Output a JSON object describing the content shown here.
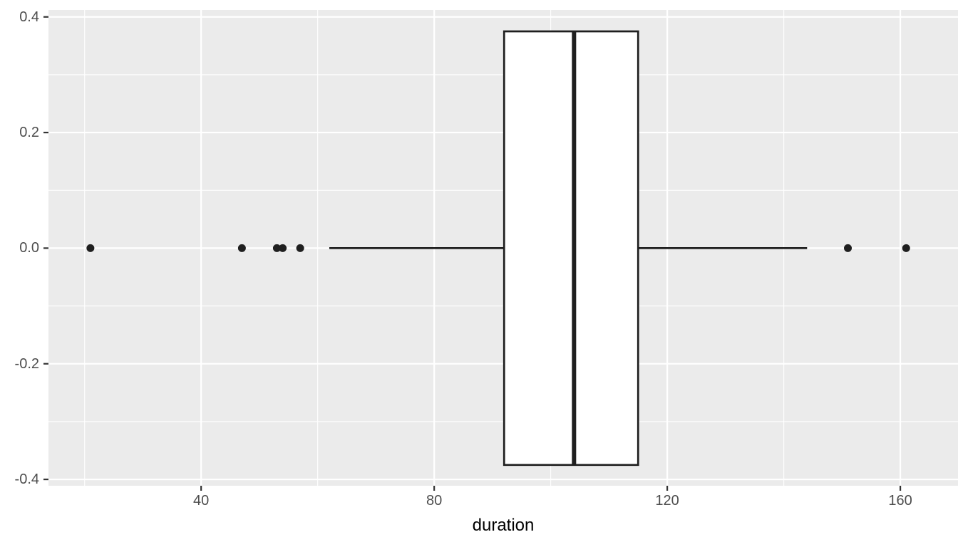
{
  "chart_data": {
    "type": "boxplot",
    "orientation": "horizontal",
    "title": "",
    "xlabel": "duration",
    "ylabel": "",
    "x_domain": [
      13.8,
      169.9
    ],
    "y_domain": [
      -0.411,
      0.412
    ],
    "x_ticks": [
      {
        "value": 40,
        "label": "40"
      },
      {
        "value": 80,
        "label": "80"
      },
      {
        "value": 120,
        "label": "120"
      },
      {
        "value": 160,
        "label": "160"
      }
    ],
    "x_minor_ticks": [
      20,
      60,
      100,
      140
    ],
    "y_ticks": [
      {
        "value": 0.4,
        "label": "0.4"
      },
      {
        "value": 0.2,
        "label": "0.2"
      },
      {
        "value": 0.0,
        "label": "0.0"
      },
      {
        "value": -0.2,
        "label": "-0.2"
      },
      {
        "value": -0.4,
        "label": "-0.4"
      }
    ],
    "y_minor_ticks": [
      0.3,
      0.1,
      -0.1,
      -0.3
    ],
    "series": [
      {
        "name": "duration",
        "center": 0,
        "half_width": 0.375,
        "whisker_min": 62,
        "q1": 92,
        "median": 104,
        "q3": 115,
        "whisker_max": 144,
        "outliers": [
          21,
          47,
          53,
          54,
          57,
          151,
          161
        ]
      }
    ],
    "grid": "on",
    "legend": "none"
  },
  "style": {
    "panel_bg": "#ebebeb",
    "grid_color": "#ffffff",
    "box_fill": "#ffffff",
    "stroke_color": "#1f1f1f",
    "point_color": "#1f1f1f",
    "tick_mark_color": "#333333",
    "tick_label_color": "#4d4d4d",
    "axis_title_color": "#000000"
  }
}
